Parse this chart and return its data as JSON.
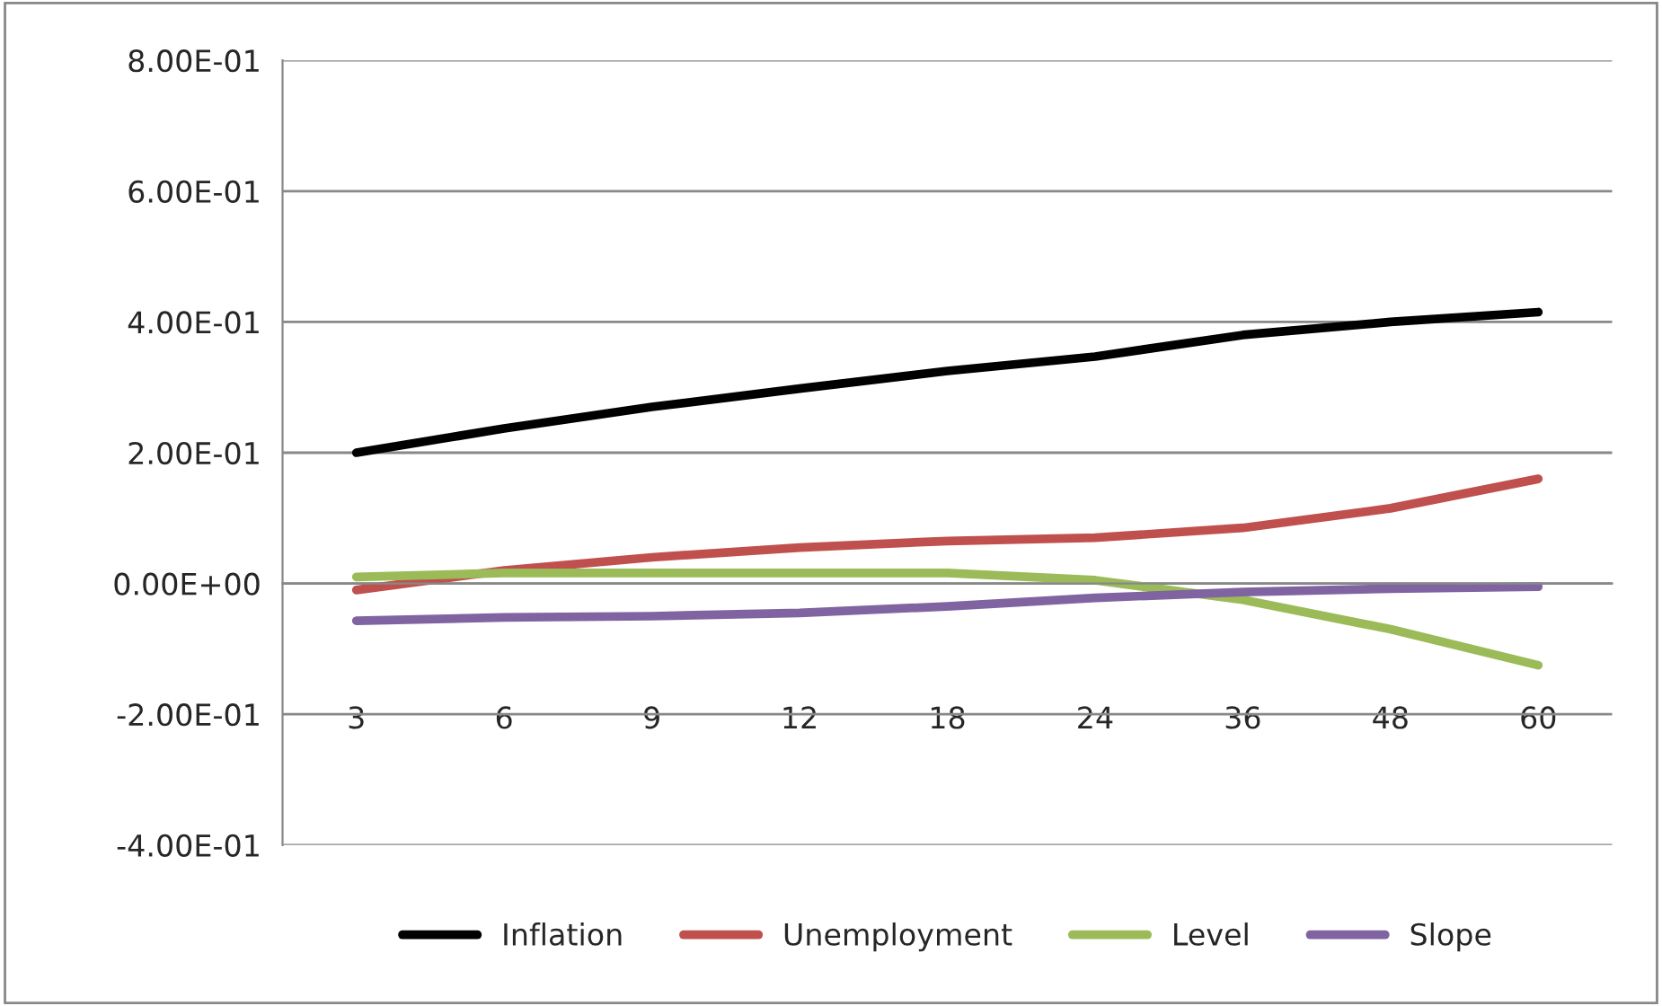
{
  "chart_data": {
    "type": "line",
    "categories": [
      "3",
      "6",
      "9",
      "12",
      "18",
      "24",
      "36",
      "48",
      "60"
    ],
    "series": [
      {
        "name": "Inflation",
        "color": "#000000",
        "values": [
          0.2,
          0.237,
          0.27,
          0.298,
          0.325,
          0.347,
          0.38,
          0.4,
          0.415
        ]
      },
      {
        "name": "Unemployment",
        "color": "#c0504d",
        "values": [
          -0.01,
          0.02,
          0.04,
          0.055,
          0.065,
          0.07,
          0.085,
          0.115,
          0.16
        ]
      },
      {
        "name": "Level",
        "color": "#9bbb59",
        "values": [
          0.01,
          0.016,
          0.016,
          0.016,
          0.016,
          0.005,
          -0.025,
          -0.07,
          -0.125
        ]
      },
      {
        "name": "Slope",
        "color": "#8064a2",
        "values": [
          -0.057,
          -0.052,
          -0.05,
          -0.045,
          -0.035,
          -0.022,
          -0.013,
          -0.008,
          -0.005
        ]
      }
    ],
    "ylim": [
      -0.4,
      0.8
    ],
    "yticks": [
      {
        "value": -0.4,
        "label": "-4.00E-01"
      },
      {
        "value": -0.2,
        "label": "-2.00E-01"
      },
      {
        "value": 0,
        "label": "0.00E+00"
      },
      {
        "value": 0.2,
        "label": "2.00E-01"
      },
      {
        "value": 0.4,
        "label": "4.00E-01"
      },
      {
        "value": 0.6,
        "label": "6.00E-01"
      },
      {
        "value": 0.8,
        "label": "8.00E-01"
      }
    ],
    "grid": "y",
    "legend": "bottom",
    "marker": "none",
    "line_style": "solid"
  }
}
